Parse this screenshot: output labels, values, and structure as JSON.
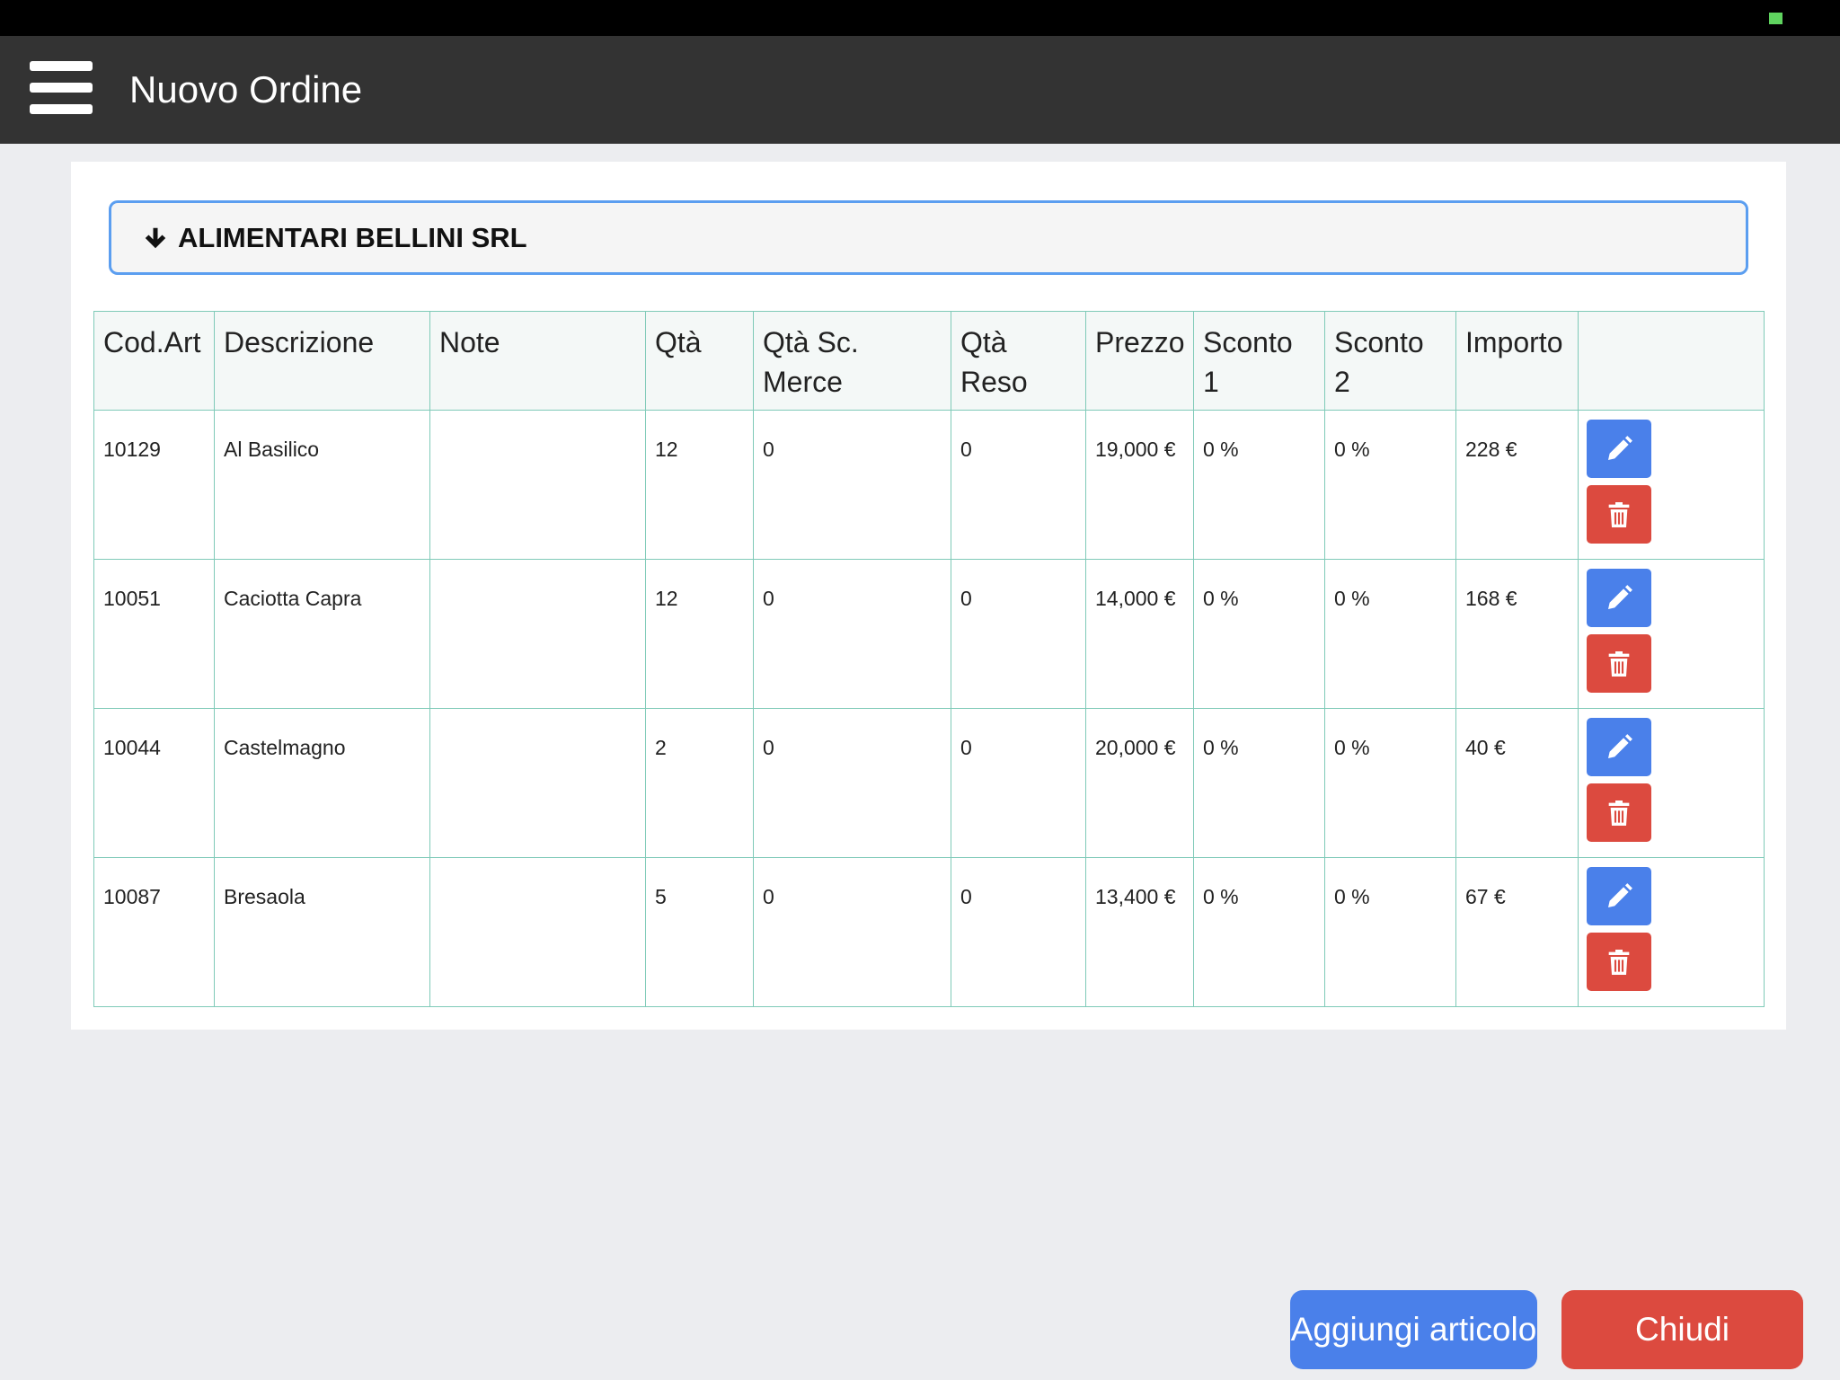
{
  "header": {
    "title": "Nuovo Ordine"
  },
  "customer": {
    "name": "ALIMENTARI BELLINI SRL"
  },
  "table": {
    "columns": [
      {
        "label": "Cod.Art"
      },
      {
        "label": "Descrizione"
      },
      {
        "label": "Note"
      },
      {
        "label": "Qtà"
      },
      {
        "label": "Qtà Sc. Merce"
      },
      {
        "label": "Qtà Reso"
      },
      {
        "label": "Prezzo"
      },
      {
        "label": "Sconto 1"
      },
      {
        "label": "Sconto 2"
      },
      {
        "label": "Importo"
      },
      {
        "label": ""
      }
    ],
    "rows": [
      {
        "cod": "10129",
        "descrizione": "Al Basilico",
        "note": "",
        "qta": "12",
        "qta_sc_merce": "0",
        "qta_reso": "0",
        "prezzo": "19,000 €",
        "sconto1": "0 %",
        "sconto2": "0 %",
        "importo": "228 €"
      },
      {
        "cod": "10051",
        "descrizione": "Caciotta Capra",
        "note": "",
        "qta": "12",
        "qta_sc_merce": "0",
        "qta_reso": "0",
        "prezzo": "14,000 €",
        "sconto1": "0 %",
        "sconto2": "0 %",
        "importo": "168 €"
      },
      {
        "cod": "10044",
        "descrizione": "Castelmagno",
        "note": "",
        "qta": "2",
        "qta_sc_merce": "0",
        "qta_reso": "0",
        "prezzo": "20,000 €",
        "sconto1": "0 %",
        "sconto2": "0 %",
        "importo": "40 €"
      },
      {
        "cod": "10087",
        "descrizione": "Bresaola",
        "note": "",
        "qta": "5",
        "qta_sc_merce": "0",
        "qta_reso": "0",
        "prezzo": "13,400 €",
        "sconto1": "0 %",
        "sconto2": "0 %",
        "importo": "67 €"
      }
    ]
  },
  "footer": {
    "add_label": "Aggiungi articolo",
    "close_label": "Chiudi"
  },
  "icons": {
    "menu": "hamburger-menu-icon",
    "arrow": "arrow-down-icon",
    "edit": "pencil-icon",
    "delete": "trash-icon"
  },
  "colors": {
    "nav_bg": "#333333",
    "primary": "#4a80ea",
    "danger": "#dc4a3f",
    "table_border": "#7fcab8",
    "panel_border": "#5b9ef0"
  }
}
